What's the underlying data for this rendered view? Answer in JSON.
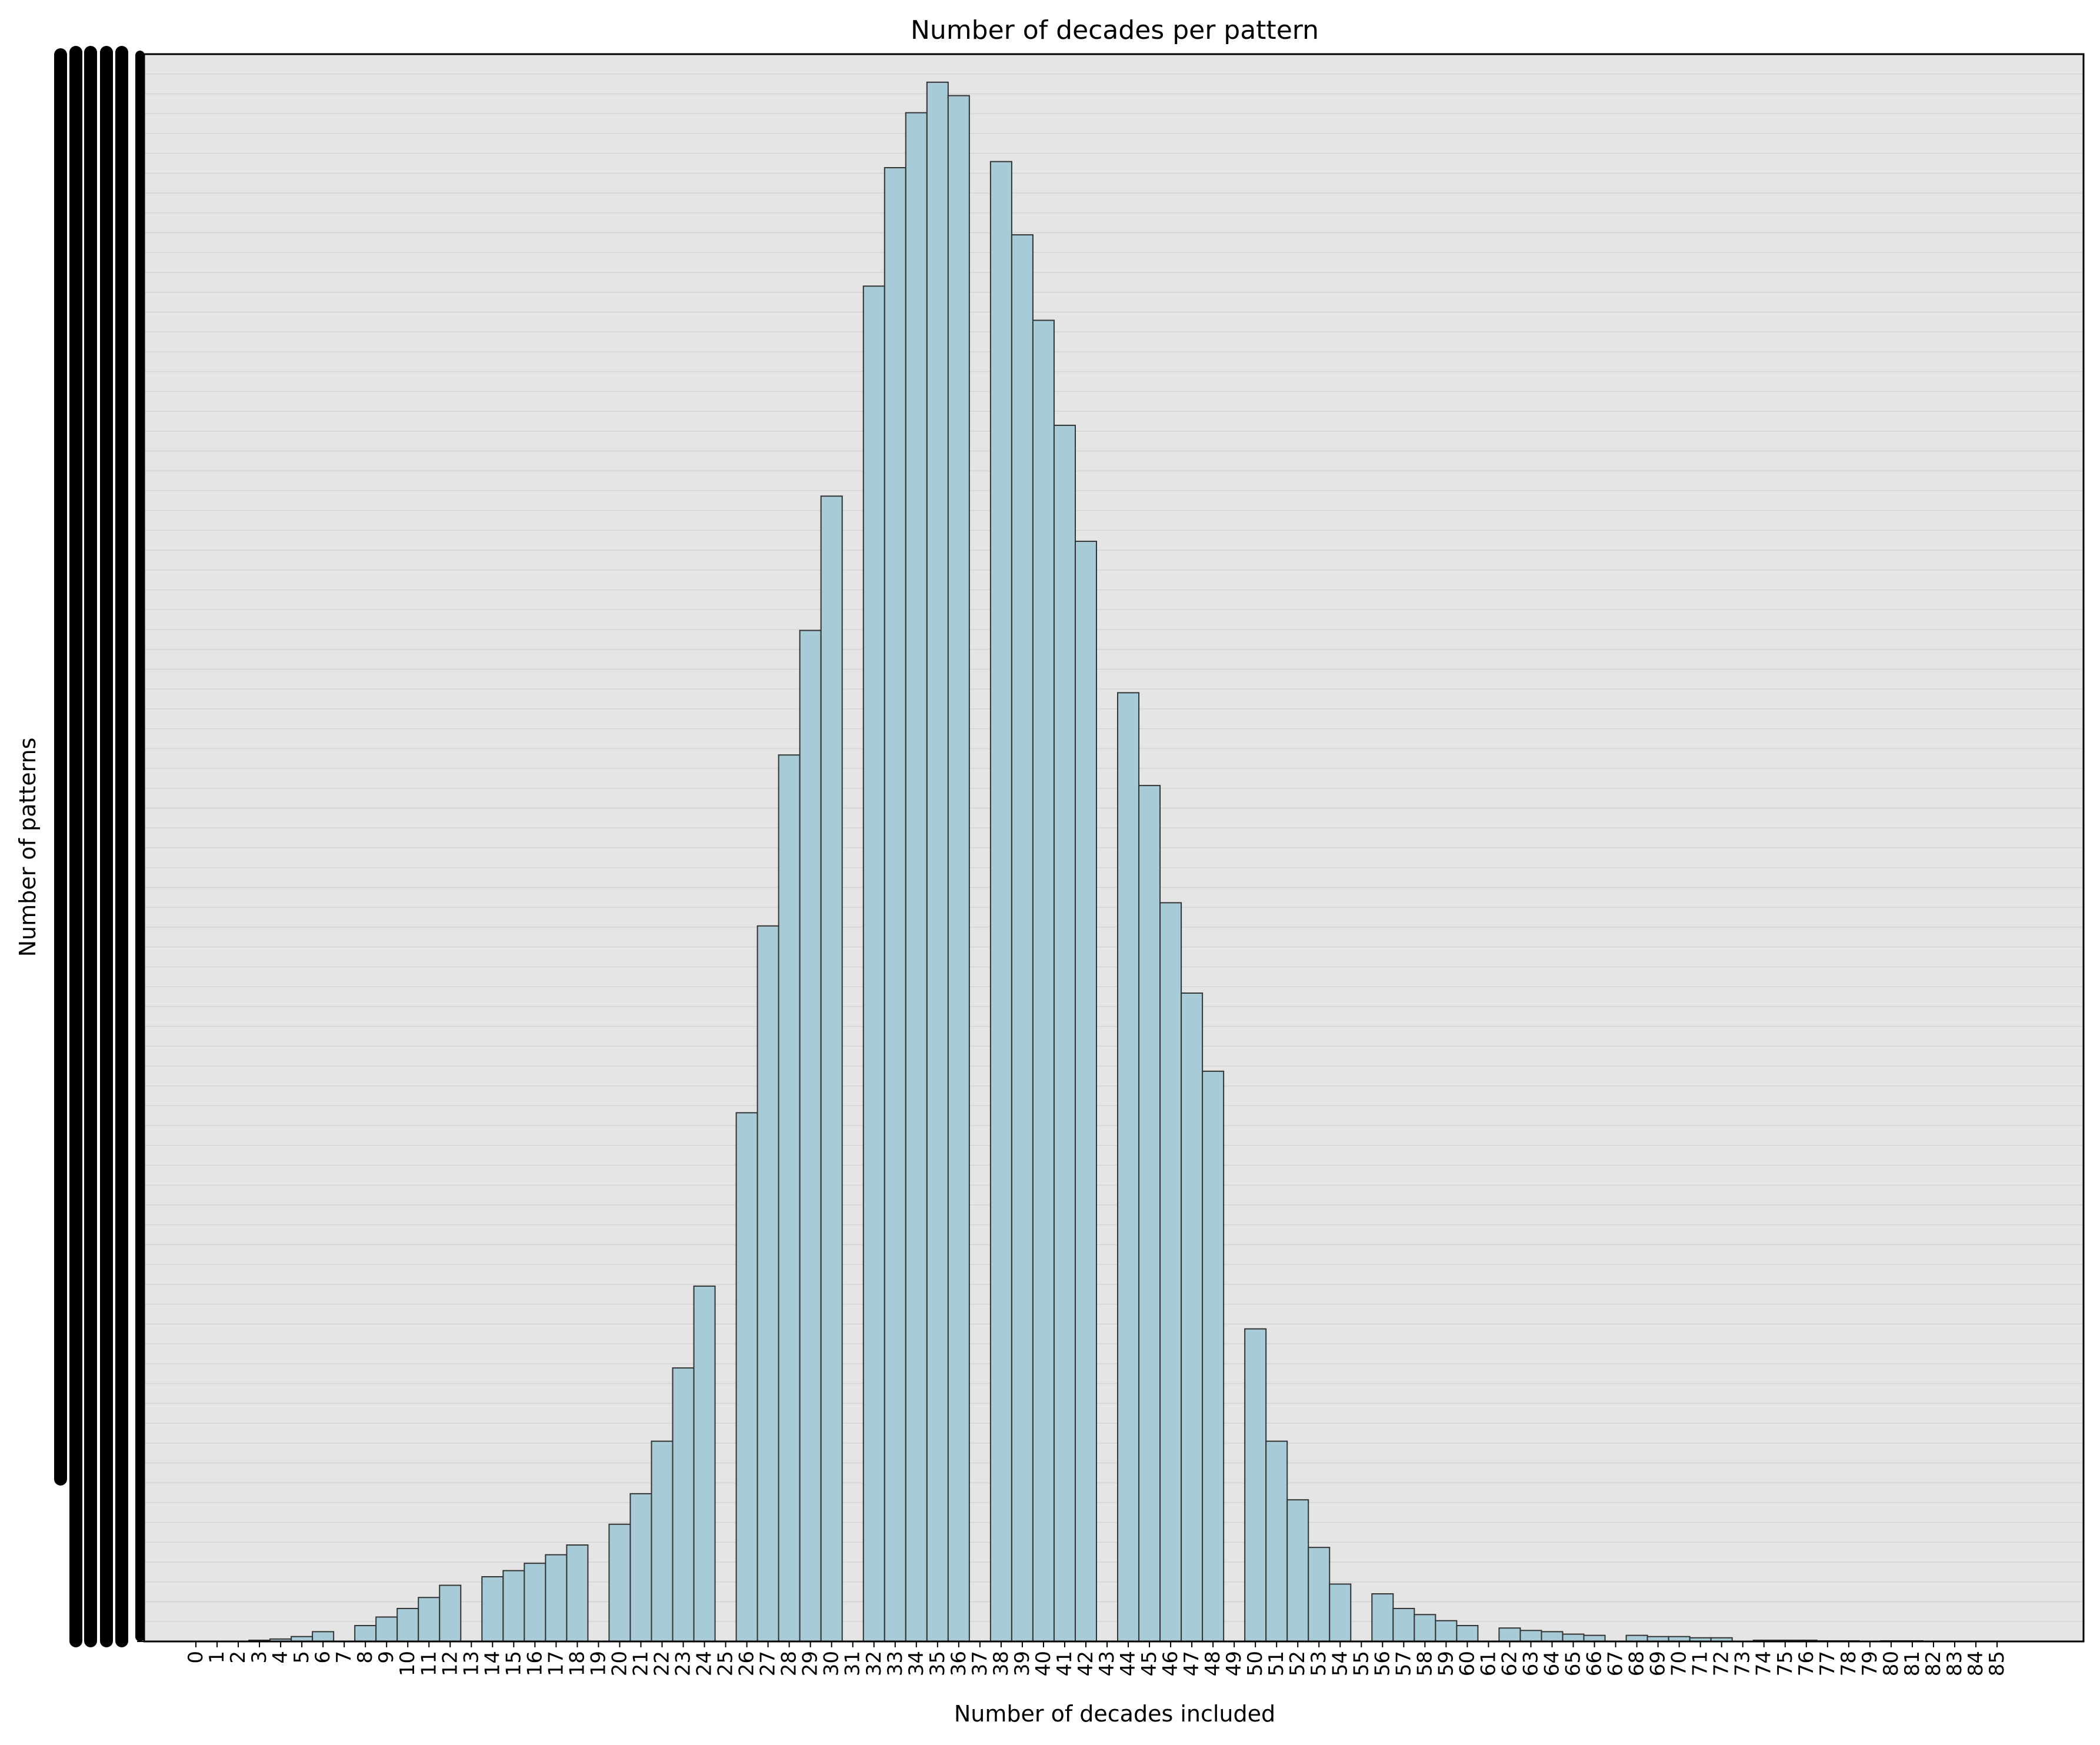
{
  "chart_data": {
    "type": "bar",
    "title": "Number of decades per pattern",
    "xlabel": "Number of decades included",
    "ylabel": "Number of patterns",
    "categories": [
      "0",
      "1",
      "2",
      "3",
      "4",
      "5",
      "6",
      "7",
      "8",
      "9",
      "10",
      "11",
      "12",
      "13",
      "14",
      "15",
      "16",
      "17",
      "18",
      "19",
      "20",
      "21",
      "22",
      "23",
      "24",
      "25",
      "26",
      "27",
      "28",
      "29",
      "30",
      "31",
      "32",
      "33",
      "34",
      "35",
      "36",
      "37",
      "38",
      "39",
      "40",
      "41",
      "42",
      "43",
      "44",
      "45",
      "46",
      "47",
      "48",
      "49",
      "50",
      "51",
      "52",
      "53",
      "54",
      "55",
      "56",
      "57",
      "58",
      "59",
      "60",
      "61",
      "62",
      "63",
      "64",
      "65",
      "66",
      "67",
      "68",
      "69",
      "70",
      "71",
      "72",
      "73",
      "74",
      "75",
      "76",
      "77",
      "78",
      "79",
      "80",
      "81",
      "82",
      "83",
      "84",
      "85"
    ],
    "values": [
      0,
      0,
      0,
      0.1,
      0.2,
      0.4,
      0.8,
      0,
      1.3,
      2.0,
      2.7,
      3.6,
      4.6,
      0,
      5.3,
      5.8,
      6.4,
      7.1,
      7.9,
      0,
      9.6,
      12.1,
      16.4,
      22.4,
      29.1,
      0,
      43.3,
      58.6,
      72.6,
      82.8,
      93.8,
      0,
      111,
      120.7,
      125.2,
      127.7,
      126.6,
      0,
      121.2,
      115.2,
      108.2,
      99.6,
      90.1,
      0,
      77.7,
      70.1,
      60.5,
      53.1,
      46.7,
      0,
      25.6,
      16.4,
      11.6,
      7.7,
      4.7,
      0,
      3.9,
      2.7,
      2.2,
      1.7,
      1.3,
      0,
      1.1,
      0.9,
      0.8,
      0.6,
      0.5,
      0,
      0.5,
      0.4,
      0.4,
      0.3,
      0.3,
      0,
      0.1,
      0.1,
      0.1,
      0.05,
      0.05,
      0,
      0.05,
      0.05,
      0.02,
      0.02,
      0.02,
      0
    ],
    "ylim": [
      0,
      130
    ],
    "grid": true,
    "bar_color": "#a8cbd8",
    "bar_edge_color": "#333333",
    "plot_background": "#e5e5e5",
    "grid_color": "#d4d4d4"
  }
}
